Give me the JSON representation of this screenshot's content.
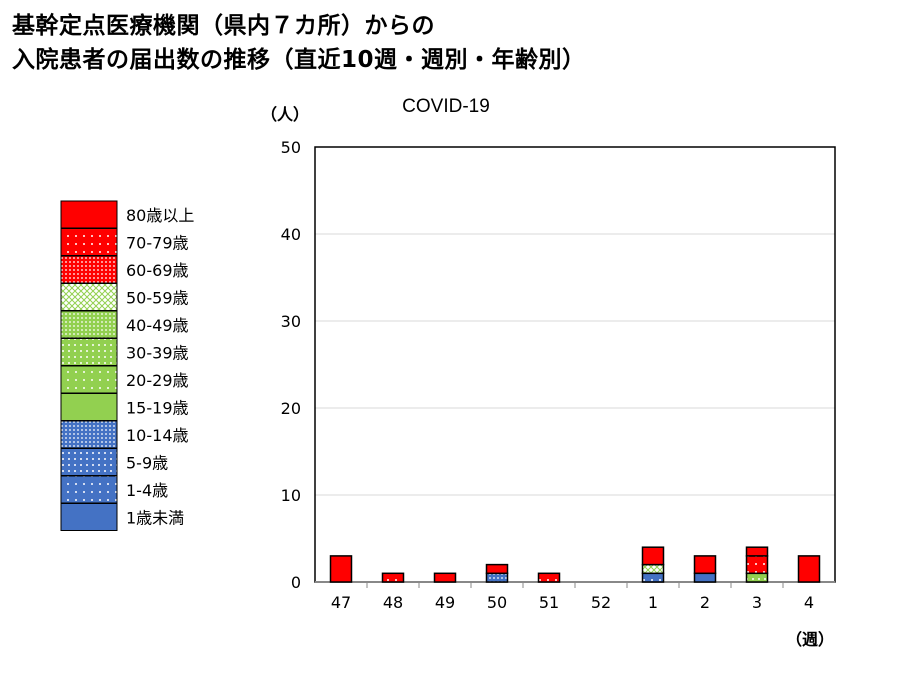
{
  "title_line1": "基幹定点医療機関（県内７カ所）からの",
  "title_line2": "入院患者の届出数の推移（直近10週・週別・年齢別）",
  "chart_data": {
    "type": "bar",
    "stacked": true,
    "title": "COVID-19",
    "ylabel": "（人）",
    "xlabel": "（週）",
    "ylim": [
      0,
      50
    ],
    "yticks": [
      0,
      10,
      20,
      30,
      40,
      50
    ],
    "grid": true,
    "legend_position": "left",
    "categories": [
      "47",
      "48",
      "49",
      "50",
      "51",
      "52",
      "1",
      "2",
      "3",
      "4"
    ],
    "series": [
      {
        "name": "1歳未満",
        "color": "#4472c4",
        "pattern": "solid",
        "values": [
          0,
          0,
          0,
          0,
          0,
          0,
          0,
          1,
          0,
          0
        ]
      },
      {
        "name": "1-4歳",
        "color": "#4472c4",
        "pattern": "sparse-dots",
        "values": [
          0,
          0,
          0,
          0,
          0,
          0,
          1,
          0,
          0,
          0
        ]
      },
      {
        "name": "5-9歳",
        "color": "#4472c4",
        "pattern": "dots",
        "values": [
          0,
          0,
          0,
          0,
          0,
          0,
          0,
          0,
          0,
          0
        ]
      },
      {
        "name": "10-14歳",
        "color": "#4472c4",
        "pattern": "dense-dots",
        "values": [
          0,
          0,
          0,
          1,
          0,
          0,
          0,
          0,
          0,
          0
        ]
      },
      {
        "name": "15-19歳",
        "color": "#92d050",
        "pattern": "solid",
        "values": [
          0,
          0,
          0,
          0,
          0,
          0,
          0,
          0,
          0,
          0
        ]
      },
      {
        "name": "20-29歳",
        "color": "#92d050",
        "pattern": "sparse-dots",
        "values": [
          0,
          0,
          0,
          0,
          0,
          0,
          0,
          0,
          0,
          0
        ]
      },
      {
        "name": "30-39歳",
        "color": "#92d050",
        "pattern": "dots",
        "values": [
          0,
          0,
          0,
          0,
          0,
          0,
          0,
          0,
          1,
          0
        ]
      },
      {
        "name": "40-49歳",
        "color": "#92d050",
        "pattern": "dense-dots",
        "values": [
          0,
          0,
          0,
          0,
          0,
          0,
          0,
          0,
          0,
          0
        ]
      },
      {
        "name": "50-59歳",
        "color": "#92d050",
        "pattern": "crosshatch",
        "values": [
          0,
          0,
          0,
          0,
          0,
          0,
          1,
          0,
          0,
          0
        ]
      },
      {
        "name": "60-69歳",
        "color": "#ff0000",
        "pattern": "dense-dots",
        "values": [
          0,
          0,
          0,
          0,
          0,
          0,
          0,
          0,
          0,
          0
        ]
      },
      {
        "name": "70-79歳",
        "color": "#ff0000",
        "pattern": "sparse-dots",
        "values": [
          0,
          1,
          0,
          0,
          1,
          0,
          0,
          0,
          2,
          0
        ]
      },
      {
        "name": "80歳以上",
        "color": "#ff0000",
        "pattern": "solid",
        "values": [
          3,
          0,
          1,
          1,
          0,
          0,
          2,
          2,
          1,
          3
        ]
      }
    ]
  }
}
